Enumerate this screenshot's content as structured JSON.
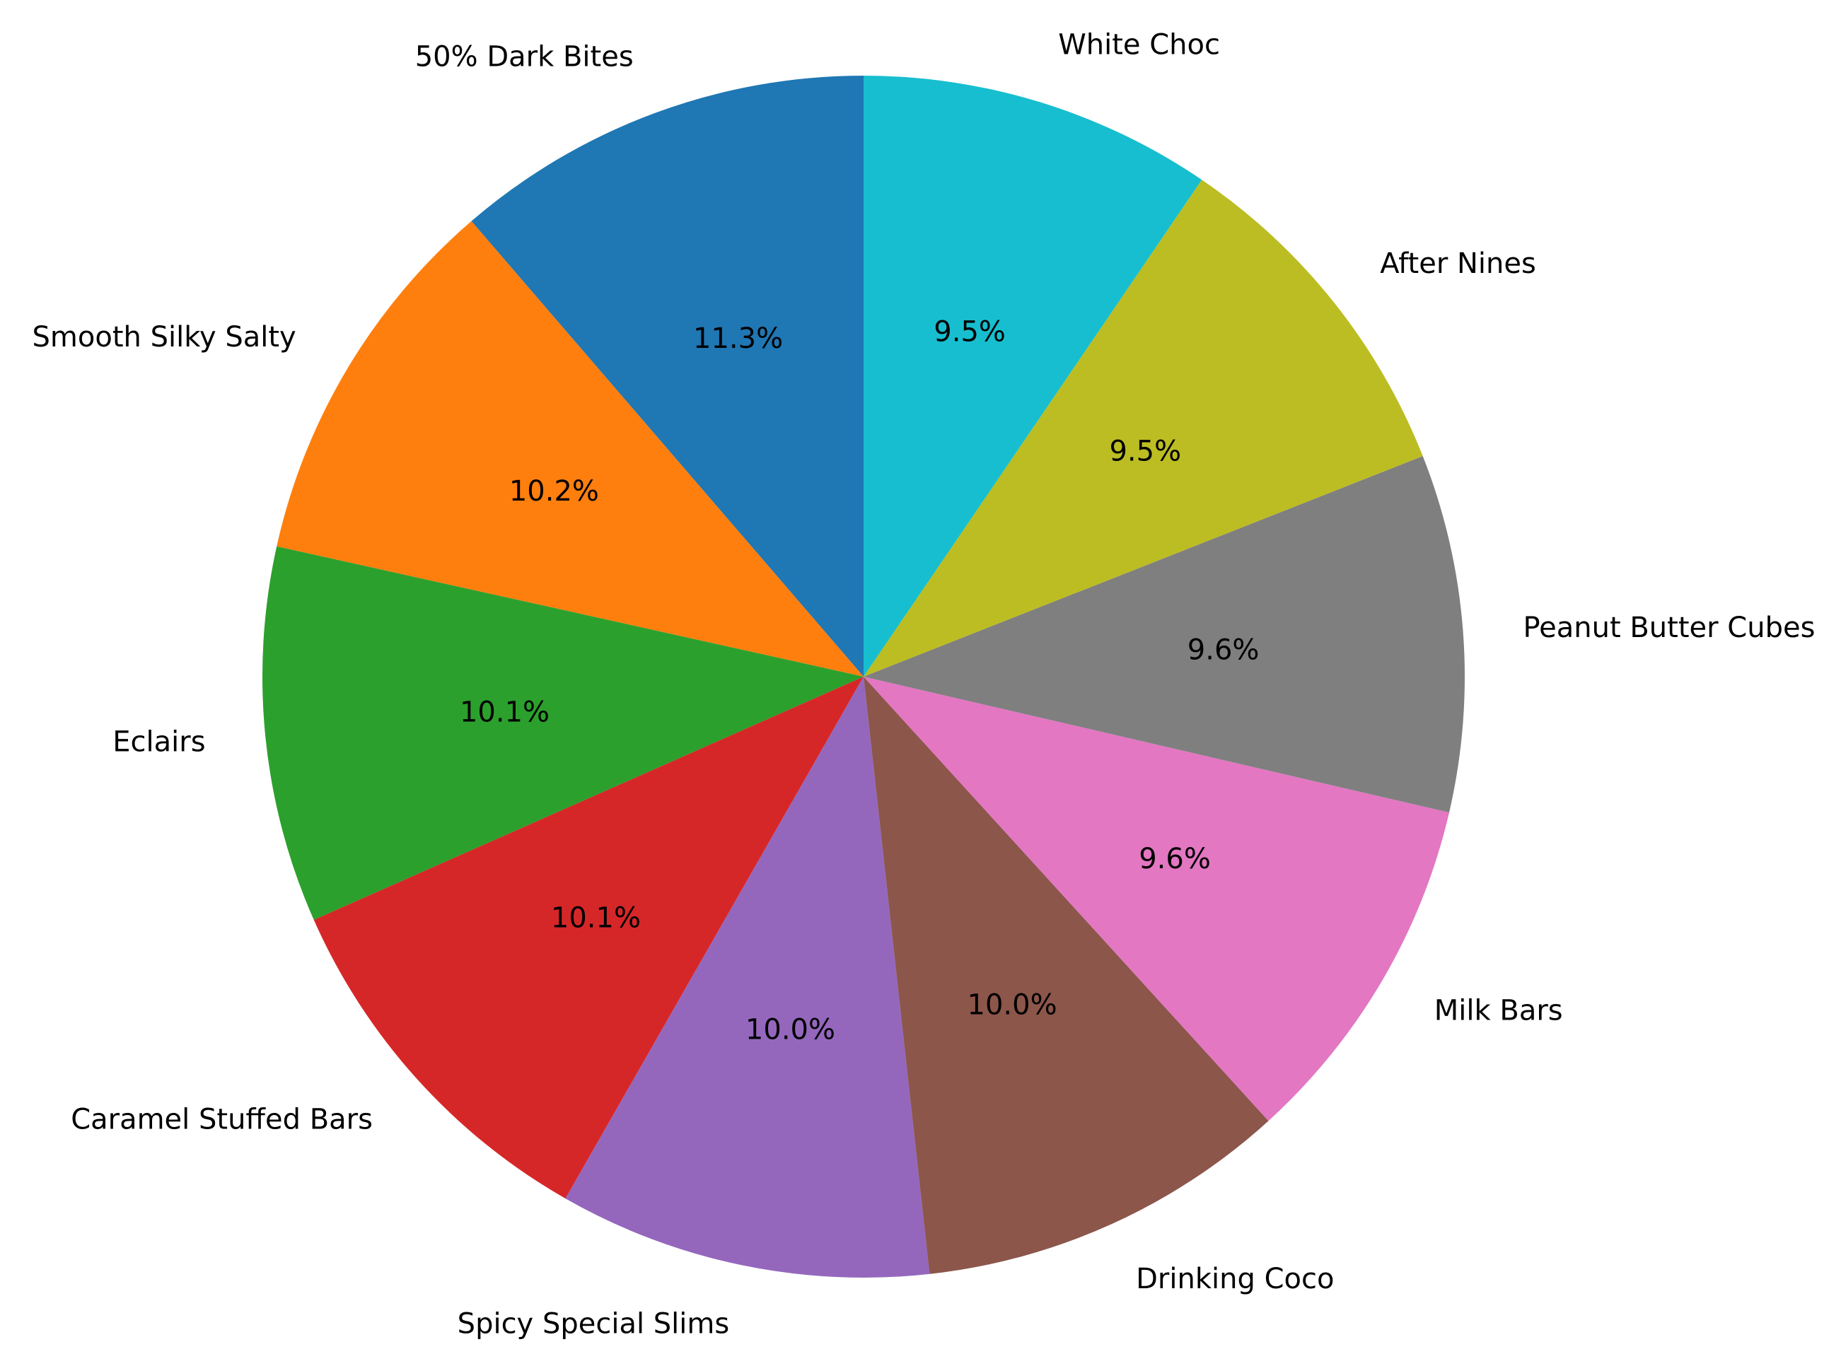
{
  "chart_data": {
    "type": "pie",
    "title": "",
    "start_angle_deg": 90,
    "direction": "counterclockwise",
    "categories": [
      "50% Dark Bites",
      "Smooth Silky Salty",
      "Eclairs",
      "Caramel Stuffed Bars",
      "Spicy Special Slims",
      "Drinking Coco",
      "Milk Bars",
      "Peanut Butter Cubes",
      "After Nines",
      "White Choc"
    ],
    "values": [
      11.3,
      10.2,
      10.1,
      10.1,
      10.0,
      10.0,
      9.6,
      9.6,
      9.5,
      9.5
    ],
    "pct_labels": [
      "11.3%",
      "10.2%",
      "10.1%",
      "10.1%",
      "10.0%",
      "10.0%",
      "9.6%",
      "9.6%",
      "9.5%",
      "9.5%"
    ],
    "colors": [
      "#1f77b4",
      "#ff7f0e",
      "#2ca02c",
      "#d62728",
      "#9467bd",
      "#8c564b",
      "#e377c2",
      "#7f7f7f",
      "#bcbd22",
      "#17becf"
    ],
    "legend": "none"
  }
}
